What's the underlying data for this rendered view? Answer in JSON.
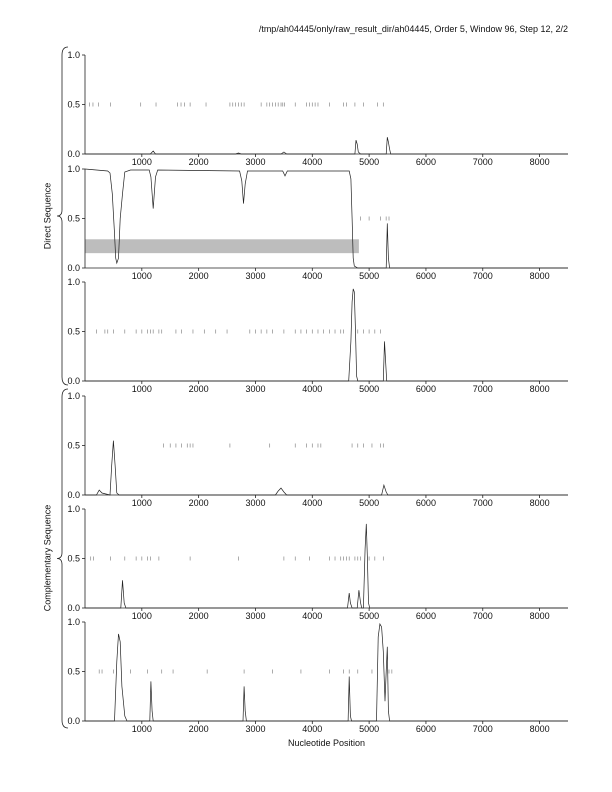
{
  "header": "/tmp/ah04445/only/raw_result_dir/ah04445, Order 5, Window 96, Step 12, 2/2",
  "group_labels": {
    "direct": "Direct Sequence",
    "complementary": "Complementary Sequence"
  },
  "xlabel": "Nucleotide Position",
  "chart_data": {
    "type": "line",
    "xlim": [
      0,
      8500
    ],
    "ylim": [
      0,
      1
    ],
    "x_ticks": [
      1000,
      2000,
      3000,
      4000,
      5000,
      6000,
      7000,
      8000
    ],
    "y_ticks": [
      "0.0",
      "0.5",
      "1.0"
    ],
    "grid": false,
    "panels": [
      {
        "group": "direct",
        "curve": [
          [
            0,
            0
          ],
          [
            1150,
            0
          ],
          [
            1200,
            0.03
          ],
          [
            1240,
            0
          ],
          [
            2650,
            0
          ],
          [
            2700,
            0.01
          ],
          [
            2750,
            0
          ],
          [
            3450,
            0
          ],
          [
            3500,
            0.02
          ],
          [
            3550,
            0
          ],
          [
            4750,
            0
          ],
          [
            4770,
            0.14
          ],
          [
            4790,
            0.1
          ],
          [
            4810,
            0.02
          ],
          [
            4850,
            0
          ],
          [
            5300,
            0
          ],
          [
            5320,
            0.17
          ],
          [
            5340,
            0.12
          ],
          [
            5360,
            0.05
          ],
          [
            5380,
            0
          ],
          [
            8500,
            0
          ]
        ],
        "ticks_y": 0.5,
        "ticks_x": [
          80,
          140,
          240,
          450,
          980,
          1250,
          1630,
          1690,
          1750,
          1850,
          2130,
          2550,
          2600,
          2650,
          2700,
          2750,
          2800,
          3100,
          3200,
          3250,
          3300,
          3350,
          3400,
          3450,
          3480,
          3510,
          3700,
          3900,
          3950,
          4000,
          4050,
          4100,
          4300,
          4550,
          4600,
          4750,
          4900,
          5150,
          5250
        ]
      },
      {
        "group": "direct",
        "curve": [
          [
            0,
            1.0
          ],
          [
            400,
            0.98
          ],
          [
            440,
            0.96
          ],
          [
            480,
            0.75
          ],
          [
            520,
            0.35
          ],
          [
            540,
            0.1
          ],
          [
            560,
            0.05
          ],
          [
            590,
            0.1
          ],
          [
            620,
            0.5
          ],
          [
            660,
            0.75
          ],
          [
            700,
            0.97
          ],
          [
            800,
            0.99
          ],
          [
            1130,
            0.99
          ],
          [
            1160,
            0.92
          ],
          [
            1200,
            0.6
          ],
          [
            1240,
            0.92
          ],
          [
            1280,
            0.99
          ],
          [
            2720,
            0.98
          ],
          [
            2760,
            0.88
          ],
          [
            2790,
            0.65
          ],
          [
            2820,
            0.85
          ],
          [
            2860,
            0.98
          ],
          [
            3480,
            0.98
          ],
          [
            3520,
            0.93
          ],
          [
            3560,
            0.98
          ],
          [
            4650,
            0.98
          ],
          [
            4680,
            0.9
          ],
          [
            4700,
            0.5
          ],
          [
            4720,
            0.1
          ],
          [
            4740,
            0.02
          ],
          [
            4800,
            0
          ],
          [
            5300,
            0
          ],
          [
            5320,
            0.45
          ],
          [
            5340,
            0.1
          ],
          [
            5360,
            0
          ],
          [
            8500,
            0
          ]
        ],
        "ticks_y": 0.5,
        "ticks_x": [
          4850,
          5000,
          5200,
          5300,
          5350
        ],
        "band": {
          "x": [
            0,
            4820
          ],
          "y": [
            0.15,
            0.29
          ]
        }
      },
      {
        "group": "direct",
        "curve": [
          [
            0,
            0
          ],
          [
            4640,
            0
          ],
          [
            4680,
            0.4
          ],
          [
            4700,
            0.8
          ],
          [
            4720,
            0.93
          ],
          [
            4740,
            0.9
          ],
          [
            4760,
            0.5
          ],
          [
            4780,
            0.05
          ],
          [
            4800,
            0
          ],
          [
            5250,
            0
          ],
          [
            5270,
            0.4
          ],
          [
            5290,
            0.2
          ],
          [
            5310,
            0
          ],
          [
            8500,
            0
          ]
        ],
        "ticks_y": 0.5,
        "ticks_x": [
          200,
          350,
          400,
          500,
          700,
          900,
          1000,
          1100,
          1150,
          1200,
          1300,
          1350,
          1600,
          1700,
          1900,
          2100,
          2300,
          2500,
          2900,
          3000,
          3100,
          3200,
          3300,
          3500,
          3700,
          3800,
          3900,
          4000,
          4100,
          4200,
          4300,
          4400,
          4500,
          4550,
          4800,
          4900,
          5000,
          5100,
          5200
        ]
      },
      {
        "group": "complementary",
        "curve": [
          [
            0,
            0
          ],
          [
            200,
            0
          ],
          [
            250,
            0.05
          ],
          [
            300,
            0.02
          ],
          [
            440,
            0
          ],
          [
            470,
            0.3
          ],
          [
            500,
            0.55
          ],
          [
            530,
            0.3
          ],
          [
            560,
            0.02
          ],
          [
            600,
            0
          ],
          [
            3350,
            0
          ],
          [
            3400,
            0.04
          ],
          [
            3450,
            0.07
          ],
          [
            3500,
            0.03
          ],
          [
            3550,
            0
          ],
          [
            5220,
            0
          ],
          [
            5260,
            0.1
          ],
          [
            5300,
            0.03
          ],
          [
            5330,
            0
          ],
          [
            8500,
            0
          ]
        ],
        "ticks_y": 0.5,
        "ticks_x": [
          1380,
          1500,
          1600,
          1700,
          1800,
          1850,
          1900,
          2550,
          3250,
          3700,
          3900,
          4000,
          4100,
          4150,
          4700,
          4800,
          4900,
          5050,
          5200,
          5250
        ]
      },
      {
        "group": "complementary",
        "curve": [
          [
            0,
            0
          ],
          [
            630,
            0
          ],
          [
            660,
            0.28
          ],
          [
            690,
            0.05
          ],
          [
            720,
            0
          ],
          [
            4620,
            0
          ],
          [
            4650,
            0.15
          ],
          [
            4670,
            0.05
          ],
          [
            4700,
            0
          ],
          [
            4790,
            0
          ],
          [
            4820,
            0.18
          ],
          [
            4850,
            0.05
          ],
          [
            4870,
            0
          ],
          [
            4900,
            0
          ],
          [
            4930,
            0.6
          ],
          [
            4950,
            0.85
          ],
          [
            4970,
            0.5
          ],
          [
            4990,
            0.05
          ],
          [
            5010,
            0
          ],
          [
            8500,
            0
          ]
        ],
        "ticks_y": 0.5,
        "ticks_x": [
          100,
          150,
          450,
          700,
          900,
          1000,
          1100,
          1150,
          1300,
          1850,
          2700,
          3500,
          3700,
          3950,
          4300,
          4400,
          4500,
          4550,
          4600,
          4650,
          4750,
          4800,
          4850,
          5000,
          5100,
          5250
        ]
      },
      {
        "group": "complementary",
        "curve": [
          [
            0,
            0
          ],
          [
            520,
            0
          ],
          [
            560,
            0.6
          ],
          [
            590,
            0.88
          ],
          [
            620,
            0.8
          ],
          [
            650,
            0.35
          ],
          [
            700,
            0.05
          ],
          [
            740,
            0
          ],
          [
            1140,
            0
          ],
          [
            1160,
            0.4
          ],
          [
            1180,
            0.1
          ],
          [
            1200,
            0
          ],
          [
            2780,
            0
          ],
          [
            2800,
            0.35
          ],
          [
            2820,
            0.1
          ],
          [
            2840,
            0
          ],
          [
            4630,
            0
          ],
          [
            4650,
            0.45
          ],
          [
            4670,
            0.05
          ],
          [
            4690,
            0
          ],
          [
            5130,
            0
          ],
          [
            5160,
            0.85
          ],
          [
            5190,
            0.98
          ],
          [
            5220,
            0.95
          ],
          [
            5250,
            0.7
          ],
          [
            5280,
            0.2
          ],
          [
            5300,
            0.5
          ],
          [
            5320,
            0.75
          ],
          [
            5340,
            0.1
          ],
          [
            5360,
            0
          ],
          [
            8500,
            0
          ]
        ],
        "ticks_y": 0.5,
        "ticks_x": [
          250,
          300,
          500,
          800,
          1100,
          1350,
          1550,
          2150,
          2800,
          3300,
          3800,
          4300,
          4550,
          4650,
          4800,
          5050,
          5350,
          5400
        ]
      }
    ]
  }
}
